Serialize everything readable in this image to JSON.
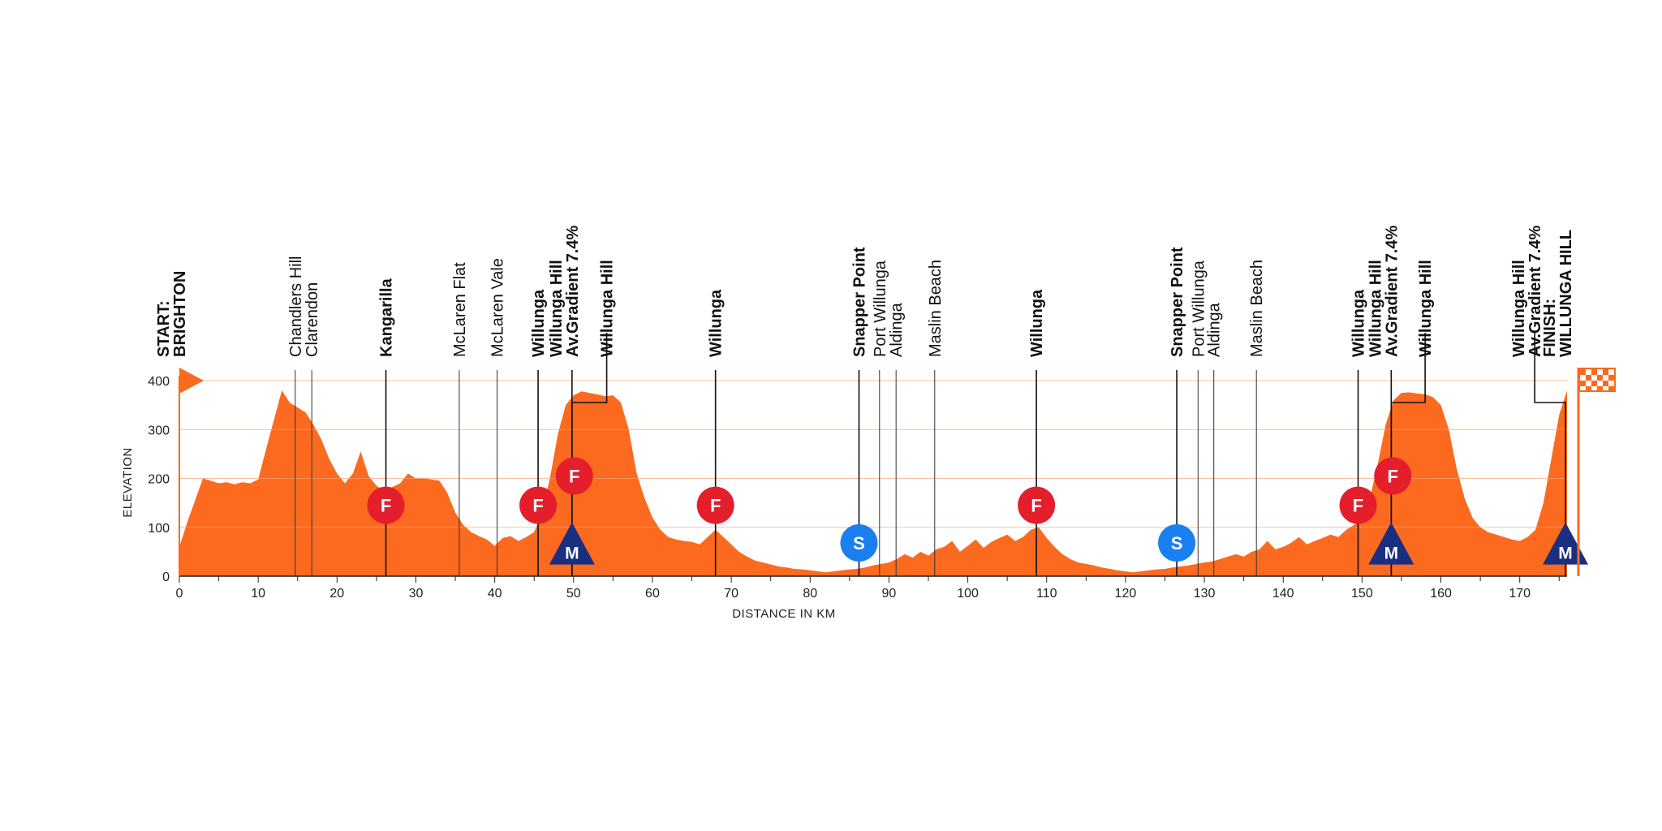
{
  "chart_data": {
    "type": "area",
    "xlabel": "DISTANCE IN KM",
    "ylabel": "ELEVATION",
    "xlim": [
      0,
      176
    ],
    "ylim": [
      0,
      400
    ],
    "x_ticks": [
      0,
      10,
      20,
      30,
      40,
      50,
      60,
      70,
      80,
      90,
      100,
      110,
      120,
      130,
      140,
      150,
      160,
      170
    ],
    "y_ticks": [
      0,
      100,
      200,
      300,
      400
    ],
    "grid": true,
    "colors": {
      "profile": "#fb6a1f",
      "sprint_intermediate": "#e41e2b",
      "kom": "#1b2f82",
      "points": "#1a7ff0",
      "grid": "#f7a57a"
    },
    "profile": [
      [
        0,
        60
      ],
      [
        1,
        110
      ],
      [
        2,
        155
      ],
      [
        3,
        200
      ],
      [
        4,
        195
      ],
      [
        5,
        190
      ],
      [
        6,
        192
      ],
      [
        7,
        188
      ],
      [
        8,
        192
      ],
      [
        9,
        190
      ],
      [
        10,
        198
      ],
      [
        11,
        260
      ],
      [
        12,
        320
      ],
      [
        13,
        380
      ],
      [
        14,
        355
      ],
      [
        15,
        345
      ],
      [
        16,
        335
      ],
      [
        17,
        310
      ],
      [
        18,
        280
      ],
      [
        19,
        240
      ],
      [
        20,
        210
      ],
      [
        21,
        190
      ],
      [
        22,
        210
      ],
      [
        23,
        255
      ],
      [
        24,
        205
      ],
      [
        25,
        185
      ],
      [
        26,
        175
      ],
      [
        27,
        182
      ],
      [
        28,
        190
      ],
      [
        29,
        210
      ],
      [
        30,
        200
      ],
      [
        31,
        200
      ],
      [
        32,
        198
      ],
      [
        33,
        195
      ],
      [
        34,
        170
      ],
      [
        35,
        130
      ],
      [
        36,
        105
      ],
      [
        37,
        90
      ],
      [
        38,
        82
      ],
      [
        39,
        75
      ],
      [
        40,
        62
      ],
      [
        41,
        78
      ],
      [
        42,
        82
      ],
      [
        43,
        72
      ],
      [
        44,
        80
      ],
      [
        45,
        90
      ],
      [
        46,
        130
      ],
      [
        47,
        200
      ],
      [
        48,
        290
      ],
      [
        49,
        350
      ],
      [
        50,
        370
      ],
      [
        51,
        378
      ],
      [
        52,
        375
      ],
      [
        53,
        372
      ],
      [
        54,
        368
      ],
      [
        55,
        370
      ],
      [
        56,
        355
      ],
      [
        57,
        300
      ],
      [
        58,
        210
      ],
      [
        59,
        160
      ],
      [
        60,
        120
      ],
      [
        61,
        95
      ],
      [
        62,
        80
      ],
      [
        63,
        75
      ],
      [
        64,
        72
      ],
      [
        65,
        70
      ],
      [
        66,
        65
      ],
      [
        67,
        80
      ],
      [
        68,
        95
      ],
      [
        69,
        80
      ],
      [
        70,
        65
      ],
      [
        71,
        50
      ],
      [
        72,
        40
      ],
      [
        73,
        32
      ],
      [
        74,
        28
      ],
      [
        75,
        24
      ],
      [
        76,
        20
      ],
      [
        77,
        18
      ],
      [
        78,
        15
      ],
      [
        79,
        14
      ],
      [
        80,
        12
      ],
      [
        81,
        10
      ],
      [
        82,
        8
      ],
      [
        83,
        10
      ],
      [
        84,
        12
      ],
      [
        85,
        14
      ],
      [
        86,
        15
      ],
      [
        87,
        18
      ],
      [
        88,
        22
      ],
      [
        89,
        25
      ],
      [
        90,
        28
      ],
      [
        91,
        35
      ],
      [
        92,
        45
      ],
      [
        93,
        38
      ],
      [
        94,
        50
      ],
      [
        95,
        42
      ],
      [
        96,
        55
      ],
      [
        97,
        60
      ],
      [
        98,
        72
      ],
      [
        99,
        50
      ],
      [
        100,
        62
      ],
      [
        101,
        75
      ],
      [
        102,
        58
      ],
      [
        103,
        70
      ],
      [
        104,
        78
      ],
      [
        105,
        85
      ],
      [
        106,
        72
      ],
      [
        107,
        80
      ],
      [
        108,
        95
      ],
      [
        109,
        100
      ],
      [
        110,
        78
      ],
      [
        111,
        60
      ],
      [
        112,
        45
      ],
      [
        113,
        35
      ],
      [
        114,
        28
      ],
      [
        115,
        25
      ],
      [
        116,
        22
      ],
      [
        117,
        18
      ],
      [
        118,
        15
      ],
      [
        119,
        12
      ],
      [
        120,
        10
      ],
      [
        121,
        8
      ],
      [
        122,
        10
      ],
      [
        123,
        12
      ],
      [
        124,
        14
      ],
      [
        125,
        15
      ],
      [
        126,
        18
      ],
      [
        127,
        20
      ],
      [
        128,
        22
      ],
      [
        129,
        25
      ],
      [
        130,
        28
      ],
      [
        131,
        30
      ],
      [
        132,
        35
      ],
      [
        133,
        40
      ],
      [
        134,
        45
      ],
      [
        135,
        40
      ],
      [
        136,
        50
      ],
      [
        137,
        55
      ],
      [
        138,
        72
      ],
      [
        139,
        55
      ],
      [
        140,
        60
      ],
      [
        141,
        68
      ],
      [
        142,
        80
      ],
      [
        143,
        65
      ],
      [
        144,
        72
      ],
      [
        145,
        78
      ],
      [
        146,
        85
      ],
      [
        147,
        80
      ],
      [
        148,
        95
      ],
      [
        149,
        105
      ],
      [
        150,
        120
      ],
      [
        151,
        160
      ],
      [
        152,
        230
      ],
      [
        153,
        310
      ],
      [
        154,
        360
      ],
      [
        155,
        375
      ],
      [
        156,
        376
      ],
      [
        157,
        374
      ],
      [
        158,
        372
      ],
      [
        159,
        366
      ],
      [
        160,
        350
      ],
      [
        161,
        300
      ],
      [
        162,
        220
      ],
      [
        163,
        160
      ],
      [
        164,
        120
      ],
      [
        165,
        100
      ],
      [
        166,
        90
      ],
      [
        167,
        85
      ],
      [
        168,
        80
      ],
      [
        169,
        75
      ],
      [
        170,
        72
      ],
      [
        171,
        80
      ],
      [
        172,
        95
      ],
      [
        173,
        150
      ],
      [
        174,
        240
      ],
      [
        175,
        330
      ],
      [
        176,
        380
      ]
    ],
    "waypoints": [
      {
        "km": 0,
        "lines": [
          "START:",
          "BRIGHTON"
        ],
        "bold": true
      },
      {
        "km": 14.7,
        "lines": [
          "Chandlers Hill"
        ],
        "bold": false
      },
      {
        "km": 16.8,
        "lines": [
          "Clarendon"
        ],
        "bold": false
      },
      {
        "km": 26.2,
        "lines": [
          "Kangarilla"
        ],
        "bold": true
      },
      {
        "km": 35.5,
        "lines": [
          "McLaren Flat"
        ],
        "bold": false
      },
      {
        "km": 40.3,
        "lines": [
          "McLaren Vale"
        ],
        "bold": false
      },
      {
        "km": 45.5,
        "lines": [
          "Willunga"
        ],
        "bold": true
      },
      {
        "km": 49.8,
        "lines": [
          "Willunga Hill",
          "Av.Gradient 7.4%"
        ],
        "bold": true
      },
      {
        "km": 54.2,
        "anchor_km": 49.8,
        "lines": [
          "Willunga Hill"
        ],
        "bold": true
      },
      {
        "km": 68.0,
        "lines": [
          "Willunga"
        ],
        "bold": true
      },
      {
        "km": 86.2,
        "lines": [
          "Snapper Point"
        ],
        "bold": true
      },
      {
        "km": 88.8,
        "lines": [
          "Port Willunga"
        ],
        "bold": false
      },
      {
        "km": 90.9,
        "lines": [
          "Aldinga"
        ],
        "bold": false
      },
      {
        "km": 95.8,
        "lines": [
          "Maslin Beach"
        ],
        "bold": false
      },
      {
        "km": 108.7,
        "lines": [
          "Willunga"
        ],
        "bold": true
      },
      {
        "km": 126.5,
        "lines": [
          "Snapper Point"
        ],
        "bold": true
      },
      {
        "km": 129.2,
        "lines": [
          "Port Willunga"
        ],
        "bold": false
      },
      {
        "km": 131.2,
        "lines": [
          "Aldinga"
        ],
        "bold": false
      },
      {
        "km": 136.6,
        "lines": [
          "Maslin Beach"
        ],
        "bold": false
      },
      {
        "km": 149.5,
        "lines": [
          "Willunga"
        ],
        "bold": true
      },
      {
        "km": 153.7,
        "lines": [
          "Willunga Hill",
          "Av.Gradient 7.4%"
        ],
        "bold": true
      },
      {
        "km": 158.0,
        "anchor_km": 153.7,
        "lines": [
          "Willunga Hill"
        ],
        "bold": true
      },
      {
        "km": 171.9,
        "anchor_km": 175.8,
        "lines": [
          "Willunga Hill",
          "Av.Gradient 7.4%"
        ],
        "bold": true
      },
      {
        "km": 175.8,
        "lines": [
          "FINISH:",
          "WILLUNGA HILL"
        ],
        "bold": true
      }
    ],
    "markers": [
      {
        "type": "F",
        "km": 26.2,
        "elev": 145
      },
      {
        "type": "F",
        "km": 45.5,
        "elev": 145
      },
      {
        "type": "F",
        "km": 50.1,
        "elev": 205
      },
      {
        "type": "F",
        "km": 68.0,
        "elev": 145
      },
      {
        "type": "F",
        "km": 108.7,
        "elev": 145
      },
      {
        "type": "F",
        "km": 149.5,
        "elev": 145
      },
      {
        "type": "F",
        "km": 153.9,
        "elev": 205
      },
      {
        "type": "M",
        "km": 49.8,
        "elev": 62
      },
      {
        "type": "M",
        "km": 153.7,
        "elev": 62
      },
      {
        "type": "M",
        "km": 175.8,
        "elev": 62
      },
      {
        "type": "S",
        "km": 86.2,
        "elev": 68
      },
      {
        "type": "S",
        "km": 126.5,
        "elev": 68
      }
    ]
  }
}
